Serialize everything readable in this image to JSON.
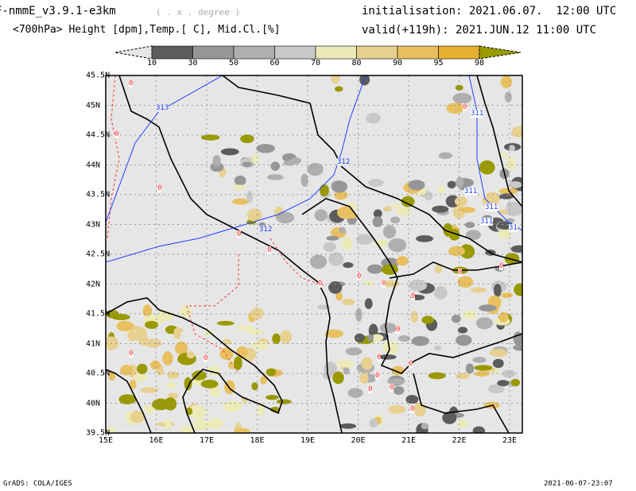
{
  "header": {
    "model": "F-nmmE_v3.9.1-e3km",
    "units_note": "( . x . degree )",
    "fields": "<700hPa> Height [dpm],Temp.[ C], Mid.Cl.[%]",
    "initialisation": "initialisation: 2021.06.07.  12:00 UTC",
    "valid": "valid(+119h): 2021.JUN.12 11:00 UTC"
  },
  "colorbar": {
    "labels": [
      "10",
      "30",
      "50",
      "60",
      "70",
      "80",
      "90",
      "95",
      "98"
    ],
    "colors": [
      "#e6e6e6",
      "#5c5c5c",
      "#969696",
      "#afafaf",
      "#c8c8c8",
      "#ecebb8",
      "#e8d090",
      "#e8c060",
      "#e8b030",
      "#999900"
    ]
  },
  "axes": {
    "lat_labels": [
      "45.5N",
      "45N",
      "44.5N",
      "44N",
      "43.5N",
      "43N",
      "42.5N",
      "42N",
      "41.5N",
      "41N",
      "40.5N",
      "40N",
      "39.5N"
    ],
    "lon_labels": [
      "15E",
      "16E",
      "17E",
      "18E",
      "19E",
      "20E",
      "21E",
      "22E",
      "23E"
    ]
  },
  "contours": {
    "height_labels": [
      "313",
      "312",
      "312",
      "311",
      "311",
      "311",
      "311",
      "31"
    ],
    "temp_label": "0"
  },
  "footer": {
    "left": "GrADS: COLA/IGES",
    "right": "2021-06-07-23:07"
  }
}
